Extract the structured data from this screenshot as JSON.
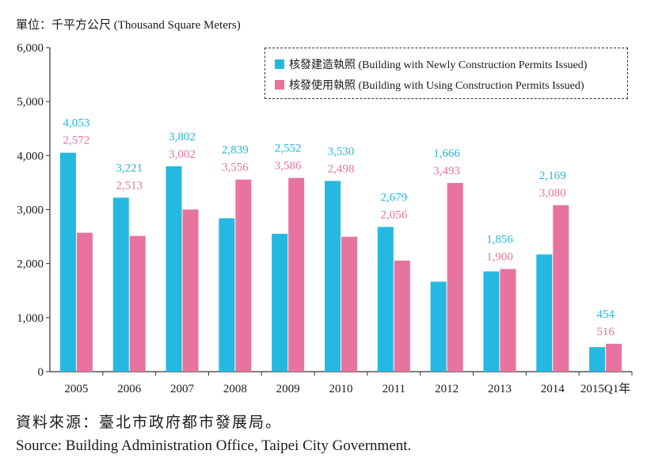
{
  "unit_label": "單位：千平方公尺 (Thousand Square Meters)",
  "source_zh": "資料來源：臺北市政府都市發展局。",
  "source_en": "Source: Building Administration Office, Taipei City Government.",
  "colors": {
    "series1": "#25b8e0",
    "series2": "#e8739e",
    "axis": "#333333"
  },
  "chart_data": {
    "type": "bar",
    "categories": [
      "2005",
      "2006",
      "2007",
      "2008",
      "2009",
      "2010",
      "2011",
      "2012",
      "2013",
      "2014",
      "2015Q1年"
    ],
    "series": [
      {
        "name": "核發建造執照 (Building with Newly Construction Permits Issued)",
        "values": [
          4053,
          3221,
          3802,
          2839,
          2552,
          3530,
          2679,
          1666,
          1856,
          2169,
          454
        ],
        "labels": [
          "4,053",
          "3,221",
          "3,802",
          "2,839",
          "2,552",
          "3,530",
          "2,679",
          "1,666",
          "1,856",
          "2,169",
          "454"
        ]
      },
      {
        "name": "核發使用執照 (Building with Using Construction Permits Issued)",
        "values": [
          2572,
          2513,
          3002,
          3556,
          3586,
          2498,
          2056,
          3493,
          1900,
          3080,
          516
        ],
        "labels": [
          "2,572",
          "2,513",
          "3,002",
          "3,556",
          "3,586",
          "2,498",
          "2,056",
          "3,493",
          "1,900",
          "3,080",
          "516"
        ]
      }
    ],
    "yticks": [
      "0",
      "1,000",
      "2,000",
      "3,000",
      "4,000",
      "5,000",
      "6,000"
    ],
    "ylim": [
      0,
      6000
    ],
    "grid": false,
    "legend_position": "top-right"
  }
}
